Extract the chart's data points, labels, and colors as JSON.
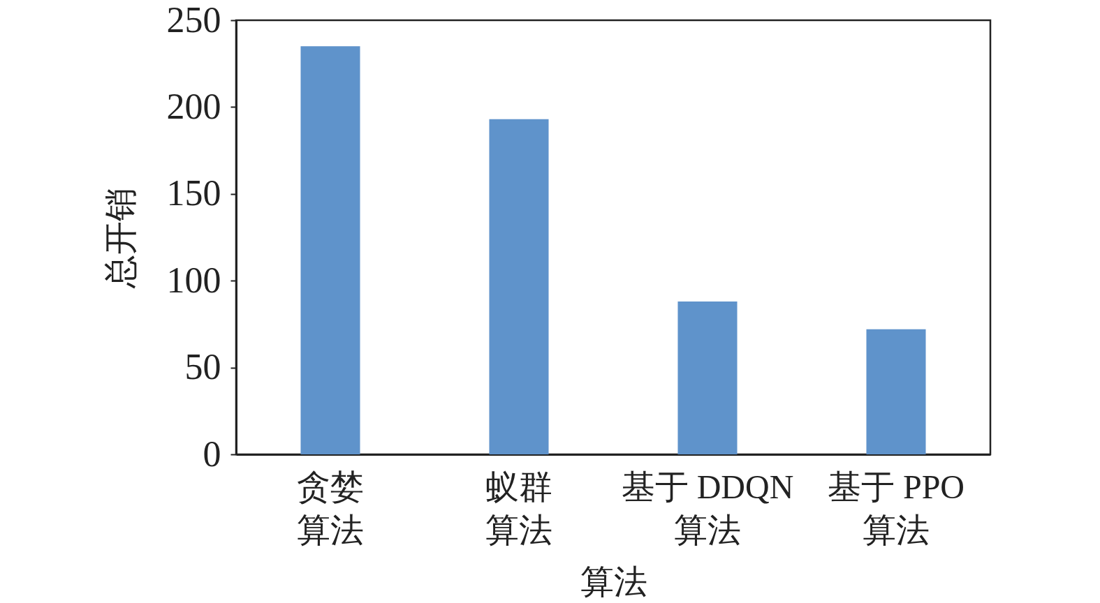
{
  "chart_data": {
    "type": "bar",
    "xlabel": "算法",
    "ylabel": "总开销",
    "categories": [
      "贪婪算法",
      "蚁群算法",
      "基于 DDQN 算法",
      "基于 PPO 算法"
    ],
    "values": [
      235,
      193,
      88,
      72
    ],
    "color": "#5f93cb",
    "ylim": [
      0,
      250
    ],
    "yticks": [
      0,
      50,
      100,
      150,
      200,
      250
    ],
    "grid": false
  }
}
